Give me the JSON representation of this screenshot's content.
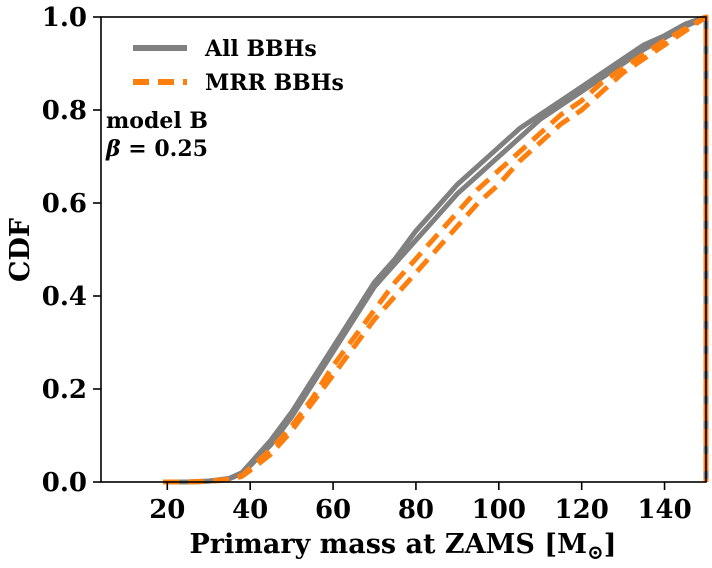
{
  "chart_data": {
    "type": "line",
    "xlabel": "Primary mass at ZAMS [M",
    "xlabel_sub": "⊙",
    "xlabel_end": "]",
    "ylabel": "CDF",
    "xlim": [
      4,
      150
    ],
    "ylim": [
      0,
      1
    ],
    "xticks": [
      20,
      40,
      60,
      80,
      100,
      120,
      140
    ],
    "yticks": [
      0.0,
      0.2,
      0.4,
      0.6,
      0.8,
      1.0
    ],
    "xtick_labels": [
      "20",
      "40",
      "60",
      "80",
      "100",
      "120",
      "140"
    ],
    "ytick_labels": [
      "0.0",
      "0.2",
      "0.4",
      "0.6",
      "0.8",
      "1.0"
    ],
    "grid": false,
    "legend_position": "top-left",
    "annotation": {
      "line1": "model B",
      "line2_symbol": "β",
      "line2_rest": " = 0.25"
    },
    "series": [
      {
        "name": "All BBHs",
        "color": "#808080",
        "style": "solid",
        "curves": [
          {
            "x": [
              19,
              25,
              30,
              35,
              38,
              40,
              45,
              50,
              55,
              60,
              65,
              70,
              75,
              80,
              85,
              90,
              95,
              100,
              105,
              110,
              115,
              120,
              125,
              130,
              135,
              140,
              145,
              150,
              150
            ],
            "y": [
              0,
              0,
              0.002,
              0.008,
              0.02,
              0.04,
              0.09,
              0.15,
              0.22,
              0.29,
              0.36,
              0.43,
              0.48,
              0.54,
              0.59,
              0.64,
              0.68,
              0.72,
              0.76,
              0.79,
              0.82,
              0.85,
              0.88,
              0.91,
              0.94,
              0.96,
              0.985,
              1.0,
              0
            ]
          },
          {
            "x": [
              19,
              25,
              30,
              35,
              38,
              40,
              45,
              50,
              55,
              60,
              65,
              70,
              75,
              80,
              85,
              90,
              95,
              100,
              105,
              110,
              115,
              120,
              125,
              130,
              135,
              140,
              145,
              150,
              150
            ],
            "y": [
              0,
              0,
              0.002,
              0.007,
              0.018,
              0.035,
              0.08,
              0.14,
              0.21,
              0.28,
              0.35,
              0.42,
              0.47,
              0.52,
              0.57,
              0.62,
              0.66,
              0.7,
              0.74,
              0.78,
              0.81,
              0.84,
              0.87,
              0.9,
              0.93,
              0.955,
              0.98,
              1.0,
              0
            ]
          }
        ]
      },
      {
        "name": "MRR BBHs",
        "color": "#ff7f0e",
        "style": "dashed",
        "curves": [
          {
            "x": [
              19,
              25,
              30,
              35,
              38,
              40,
              45,
              50,
              55,
              60,
              65,
              70,
              75,
              80,
              85,
              90,
              95,
              100,
              105,
              110,
              115,
              120,
              125,
              130,
              135,
              140,
              145,
              150,
              150
            ],
            "y": [
              0,
              0,
              0.002,
              0.006,
              0.014,
              0.03,
              0.07,
              0.12,
              0.18,
              0.25,
              0.31,
              0.37,
              0.43,
              0.48,
              0.53,
              0.58,
              0.63,
              0.67,
              0.71,
              0.75,
              0.79,
              0.82,
              0.86,
              0.89,
              0.92,
              0.95,
              0.975,
              1.0,
              0
            ]
          },
          {
            "x": [
              19,
              25,
              30,
              35,
              38,
              40,
              45,
              50,
              55,
              60,
              65,
              70,
              75,
              80,
              85,
              90,
              95,
              100,
              105,
              110,
              115,
              120,
              125,
              130,
              135,
              140,
              145,
              150,
              150
            ],
            "y": [
              0,
              0,
              0.001,
              0.005,
              0.012,
              0.025,
              0.06,
              0.11,
              0.17,
              0.23,
              0.29,
              0.35,
              0.4,
              0.45,
              0.5,
              0.55,
              0.6,
              0.64,
              0.69,
              0.73,
              0.77,
              0.8,
              0.84,
              0.88,
              0.91,
              0.94,
              0.97,
              1.0,
              0
            ]
          }
        ]
      }
    ]
  }
}
